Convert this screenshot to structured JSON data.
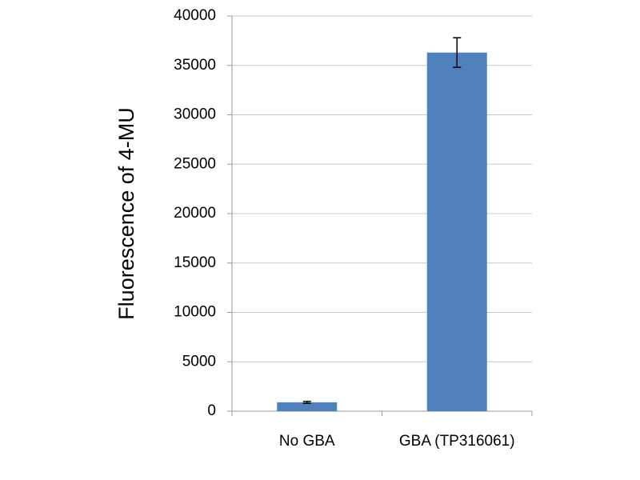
{
  "chart_data": {
    "type": "bar",
    "y_label": "Fluorescence of 4-MU",
    "categories": [
      "No GBA",
      "GBA (TP316061)"
    ],
    "values": [
      900,
      36300
    ],
    "errors": [
      100,
      1500
    ],
    "color": "#4f81bd",
    "ylim": [
      0,
      40000
    ],
    "yticks": [
      0,
      5000,
      10000,
      15000,
      20000,
      25000,
      30000,
      35000,
      40000
    ],
    "grid": true
  }
}
